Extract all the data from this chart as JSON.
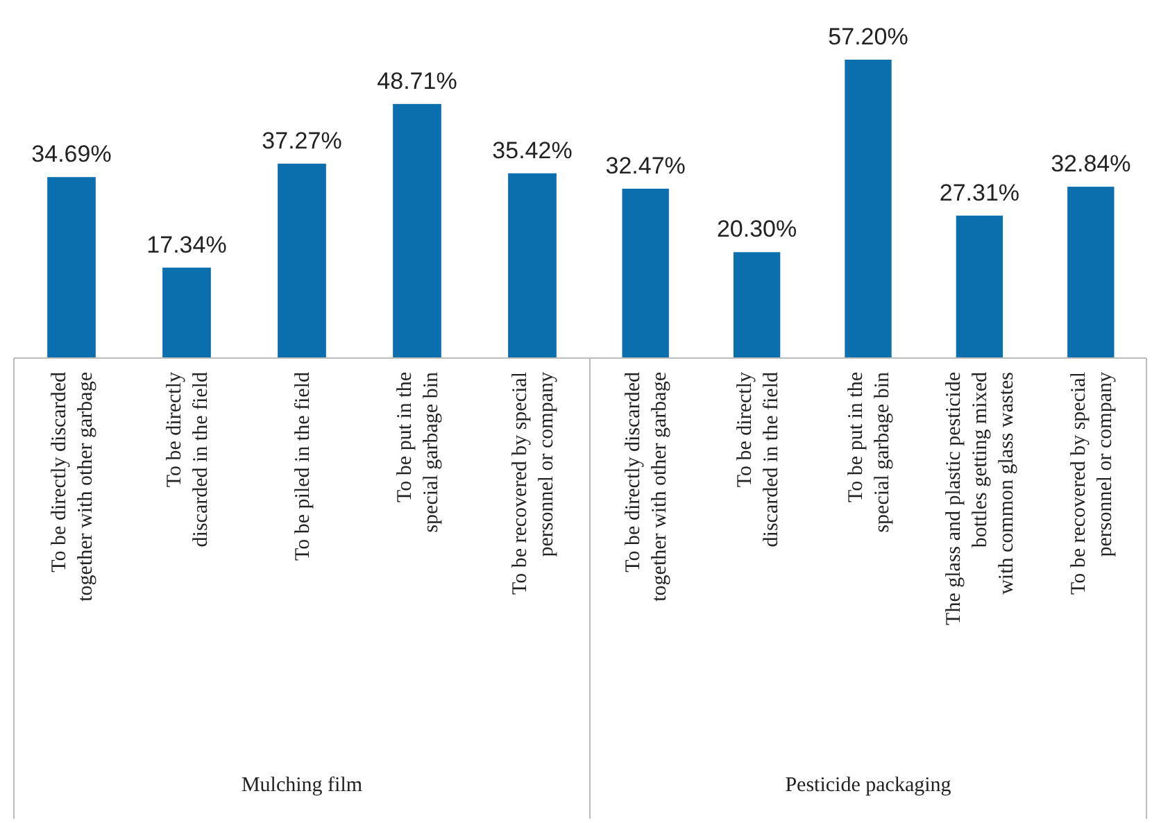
{
  "chart_data": [
    {
      "type": "bar",
      "xlabel": "Mulching film",
      "categories": [
        "To be directly discarded\ntogether with other garbage",
        "To be directly\ndiscarded in the field",
        "To be piled in the field",
        "To be put in the\nspecial garbage bin",
        "To be recovered by special\npersonnel or company"
      ],
      "values": [
        34.69,
        17.34,
        37.27,
        48.71,
        35.42
      ],
      "value_labels": [
        "34.69%",
        "17.34%",
        "37.27%",
        "48.71%",
        "35.42%"
      ],
      "color": "#0b6ead"
    },
    {
      "type": "bar",
      "xlabel": "Pesticide packaging",
      "categories": [
        "To be directly discarded\ntogether with other garbage",
        "To be directly\ndiscarded in the field",
        "To be put in the\nspecial garbage bin",
        "The glass and plastic pesticide\nbottles getting mixed\nwith common glass wastes",
        "To be recovered by special\npersonnel or company"
      ],
      "values": [
        32.47,
        20.3,
        57.2,
        27.31,
        32.84
      ],
      "value_labels": [
        "32.47%",
        "20.30%",
        "57.20%",
        "27.31%",
        "32.84%"
      ],
      "color": "#0b6ead"
    }
  ]
}
